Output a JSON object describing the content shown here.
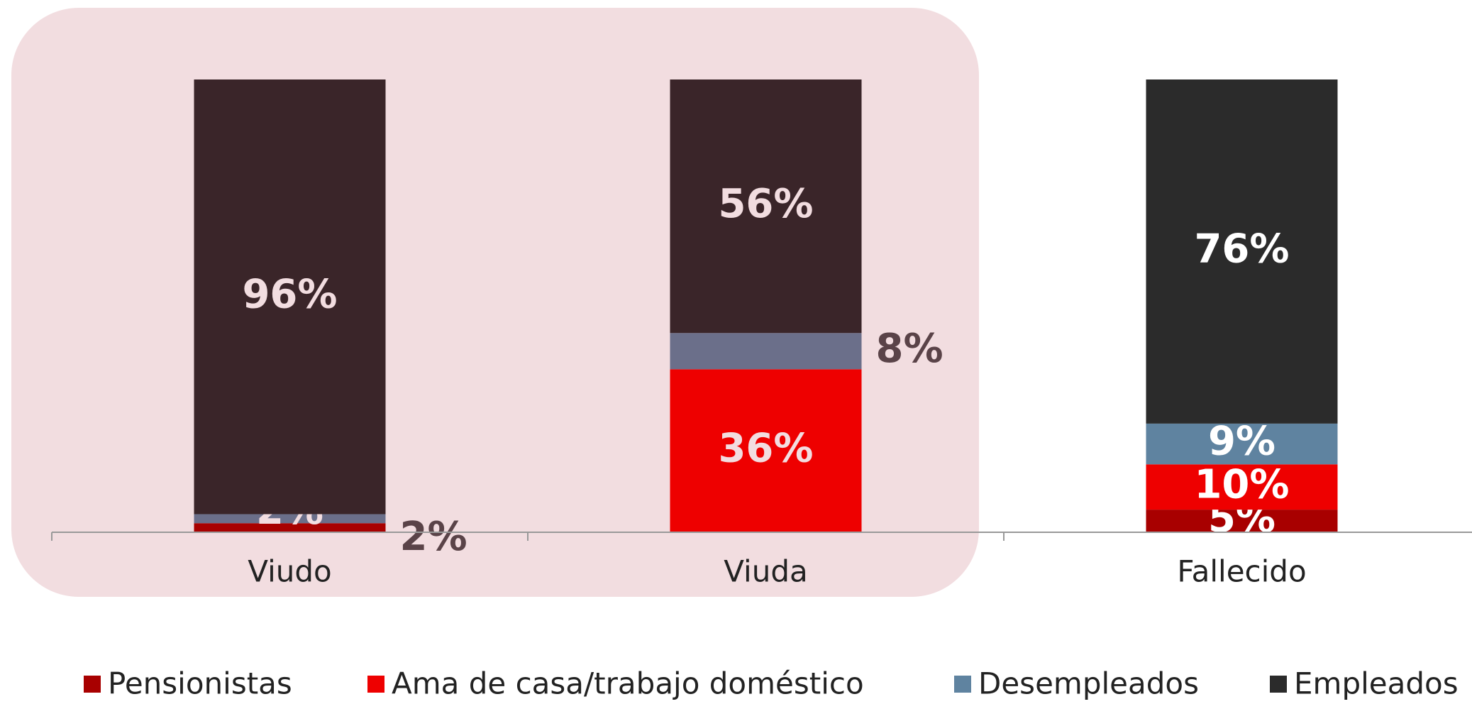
{
  "chart_data": {
    "type": "stacked_bar",
    "categories": [
      "Viudo",
      "Viuda",
      "Fallecido"
    ],
    "series": [
      {
        "name": "Pensionistas",
        "color": "#a80000",
        "values": [
          2,
          null,
          5
        ],
        "value_labels": [
          "2%",
          null,
          "5%"
        ],
        "label_positions": [
          "outside",
          null,
          "inside"
        ]
      },
      {
        "name": "Ama de casa/trabajo doméstico",
        "color": "#ee0000",
        "values": [
          null,
          36,
          10
        ],
        "value_labels": [
          null,
          "36%",
          "10%"
        ],
        "label_positions": [
          null,
          "inside",
          "inside"
        ]
      },
      {
        "name": "Desempleados",
        "color": "#5f83a0",
        "colors": [
          "#6b6f8a",
          "#6b6f8a",
          "#5f83a0"
        ],
        "values": [
          2,
          8,
          9
        ],
        "value_labels": [
          "2%",
          "8%",
          "9%"
        ],
        "label_positions": [
          "inside",
          "outside",
          "inside"
        ]
      },
      {
        "name": "Empleados",
        "color": "#2b2b2b",
        "colors": [
          "#3a2529",
          "#3a2529",
          "#2b2b2b"
        ],
        "values": [
          96,
          56,
          76
        ],
        "value_labels": [
          "96%",
          "56%",
          "76%"
        ],
        "label_positions": [
          "inside",
          "inside",
          "inside"
        ]
      }
    ],
    "label_colors": [
      "#f2dde0",
      "#f2dde0",
      "#ffffff"
    ],
    "outside_label_color": "#5a4348",
    "ylim": [
      0,
      100
    ]
  }
}
